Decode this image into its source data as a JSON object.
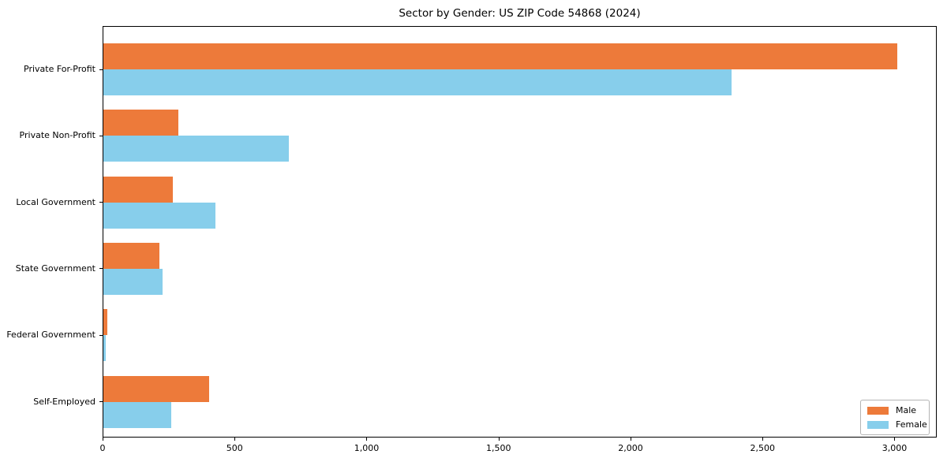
{
  "chart_data": {
    "type": "bar",
    "orientation": "horizontal",
    "title": "Sector by Gender: US ZIP Code 54868 (2024)",
    "categories": [
      "Private For-Profit",
      "Private Non-Profit",
      "Local Government",
      "State Government",
      "Federal Government",
      "Self-Employed"
    ],
    "series": [
      {
        "name": "Male",
        "color": "#ed7a3a",
        "values": [
          3007,
          283,
          262,
          211,
          15,
          400
        ]
      },
      {
        "name": "Female",
        "color": "#87ceeb",
        "values": [
          2380,
          703,
          425,
          225,
          8,
          258
        ]
      }
    ],
    "xlabel": "",
    "ylabel": "",
    "xlim": [
      0,
      3160
    ],
    "xticks": [
      0,
      500,
      1000,
      1500,
      2000,
      2500,
      3000
    ],
    "xtick_labels": [
      "0",
      "500",
      "1,000",
      "1,500",
      "2,000",
      "2,500",
      "3,000"
    ],
    "grid": false,
    "legend_position": "lower-right",
    "axis_color": "#000000",
    "background_color": "#ffffff"
  }
}
